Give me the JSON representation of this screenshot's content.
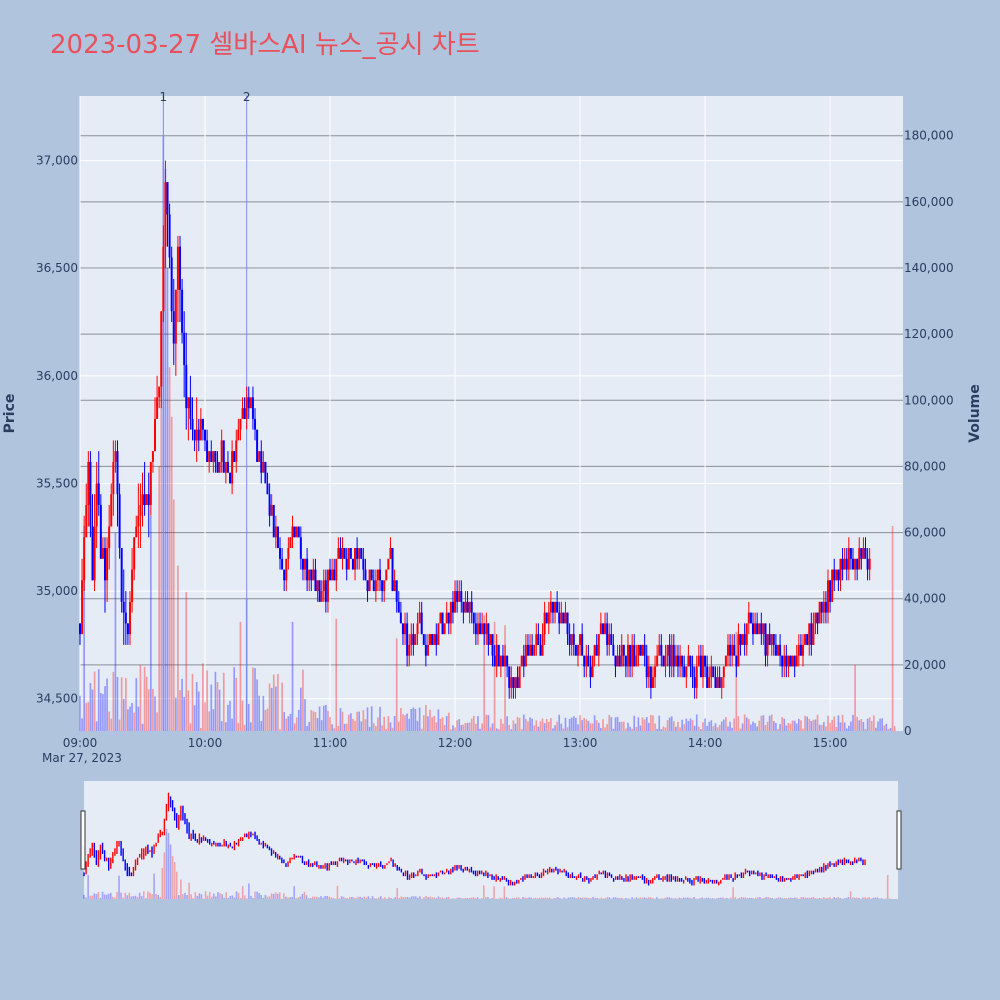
{
  "title": "2023-03-27 셀바스AI 뉴스_공시 차트",
  "colors": {
    "background": "#b0c4de",
    "plot_bg": "#e5ecf6",
    "up": "#ff0000",
    "down": "#0000ff",
    "title": "#e8505b"
  },
  "chart_data": {
    "type": "candlestick",
    "title": "2023-03-27 셀바스AI 뉴스_공시 차트",
    "ylabel": "Price",
    "y2label": "Volume",
    "date_label": "Mar 27, 2023",
    "ylim": [
      34350,
      37300
    ],
    "y2lim": [
      0,
      192000
    ],
    "x_range_minutes": [
      540,
      935
    ],
    "x_ticks": [
      "09:00",
      "10:00",
      "11:00",
      "12:00",
      "13:00",
      "14:00",
      "15:00"
    ],
    "y_ticks": [
      "34,500",
      "35,000",
      "35,500",
      "36,000",
      "36,500",
      "37,000"
    ],
    "y2_ticks": [
      "0",
      "20,000",
      "40,000",
      "60,000",
      "80,000",
      "100,000",
      "120,000",
      "140,000",
      "160,000",
      "180,000"
    ],
    "grid": true,
    "annotations": [
      {
        "label": "1",
        "time": "09:40"
      },
      {
        "label": "2",
        "time": "10:20"
      }
    ],
    "price_keypoints": [
      [
        "09:00",
        34850
      ],
      [
        "09:02",
        35250
      ],
      [
        "09:04",
        35600
      ],
      [
        "09:06",
        35100
      ],
      [
        "09:08",
        35500
      ],
      [
        "09:10",
        35200
      ],
      [
        "09:12",
        35050
      ],
      [
        "09:14",
        35300
      ],
      [
        "09:17",
        35650
      ],
      [
        "09:20",
        35000
      ],
      [
        "09:23",
        34800
      ],
      [
        "09:26",
        35250
      ],
      [
        "09:30",
        35350
      ],
      [
        "09:33",
        35450
      ],
      [
        "09:35",
        35650
      ],
      [
        "09:38",
        35950
      ],
      [
        "09:40",
        36600
      ],
      [
        "09:41",
        36900
      ],
      [
        "09:43",
        36500
      ],
      [
        "09:45",
        36150
      ],
      [
        "09:47",
        36600
      ],
      [
        "09:49",
        36200
      ],
      [
        "09:51",
        35850
      ],
      [
        "09:53",
        35800
      ],
      [
        "09:56",
        35750
      ],
      [
        "09:59",
        35800
      ],
      [
        "10:02",
        35600
      ],
      [
        "10:05",
        35550
      ],
      [
        "10:08",
        35650
      ],
      [
        "10:11",
        35550
      ],
      [
        "10:14",
        35600
      ],
      [
        "10:17",
        35800
      ],
      [
        "10:20",
        35900
      ],
      [
        "10:23",
        35800
      ],
      [
        "10:26",
        35600
      ],
      [
        "10:29",
        35500
      ],
      [
        "10:32",
        35300
      ],
      [
        "10:35",
        35200
      ],
      [
        "10:38",
        35100
      ],
      [
        "10:41",
        35200
      ],
      [
        "10:44",
        35250
      ],
      [
        "10:47",
        35150
      ],
      [
        "10:50",
        35100
      ],
      [
        "10:53",
        35000
      ],
      [
        "10:56",
        34950
      ],
      [
        "11:00",
        35050
      ],
      [
        "11:03",
        35150
      ],
      [
        "11:06",
        35200
      ],
      [
        "11:09",
        35150
      ],
      [
        "11:12",
        35200
      ],
      [
        "11:15",
        35200
      ],
      [
        "11:18",
        35050
      ],
      [
        "11:21",
        35100
      ],
      [
        "11:25",
        35050
      ],
      [
        "11:29",
        35100
      ],
      [
        "11:33",
        34900
      ],
      [
        "11:37",
        34750
      ],
      [
        "11:40",
        34800
      ],
      [
        "11:43",
        34850
      ],
      [
        "11:46",
        34750
      ],
      [
        "11:50",
        34800
      ],
      [
        "11:54",
        34850
      ],
      [
        "11:58",
        34900
      ],
      [
        "12:02",
        34950
      ],
      [
        "12:06",
        34900
      ],
      [
        "12:10",
        34850
      ],
      [
        "12:14",
        34800
      ],
      [
        "12:18",
        34700
      ],
      [
        "12:22",
        34650
      ],
      [
        "12:26",
        34550
      ],
      [
        "12:30",
        34600
      ],
      [
        "12:34",
        34700
      ],
      [
        "12:38",
        34750
      ],
      [
        "12:42",
        34800
      ],
      [
        "12:46",
        34950
      ],
      [
        "12:50",
        34900
      ],
      [
        "12:54",
        34800
      ],
      [
        "12:58",
        34750
      ],
      [
        "13:02",
        34700
      ],
      [
        "13:06",
        34700
      ],
      [
        "13:10",
        34800
      ],
      [
        "13:14",
        34750
      ],
      [
        "13:18",
        34700
      ],
      [
        "13:22",
        34750
      ],
      [
        "13:26",
        34650
      ],
      [
        "13:30",
        34700
      ],
      [
        "13:34",
        34600
      ],
      [
        "13:38",
        34650
      ],
      [
        "13:42",
        34700
      ],
      [
        "13:46",
        34650
      ],
      [
        "13:50",
        34650
      ],
      [
        "13:54",
        34600
      ],
      [
        "13:58",
        34650
      ],
      [
        "14:02",
        34600
      ],
      [
        "14:06",
        34550
      ],
      [
        "14:10",
        34650
      ],
      [
        "14:14",
        34700
      ],
      [
        "14:18",
        34750
      ],
      [
        "14:22",
        34850
      ],
      [
        "14:26",
        34800
      ],
      [
        "14:30",
        34750
      ],
      [
        "14:34",
        34700
      ],
      [
        "14:38",
        34650
      ],
      [
        "14:42",
        34650
      ],
      [
        "14:46",
        34700
      ],
      [
        "14:50",
        34800
      ],
      [
        "14:54",
        34850
      ],
      [
        "14:58",
        34950
      ],
      [
        "15:02",
        35050
      ],
      [
        "15:05",
        35150
      ],
      [
        "15:08",
        35200
      ],
      [
        "15:10",
        35150
      ],
      [
        "15:12",
        35100
      ],
      [
        "15:15",
        35150
      ],
      [
        "15:19",
        35100
      ]
    ],
    "volume_spikes": [
      [
        "09:40",
        180000
      ],
      [
        "09:41",
        170000
      ],
      [
        "09:42",
        140000
      ],
      [
        "09:39",
        120000
      ],
      [
        "09:43",
        110000
      ],
      [
        "09:44",
        95000
      ],
      [
        "09:38",
        80000
      ],
      [
        "09:45",
        70000
      ],
      [
        "09:02",
        62000
      ],
      [
        "09:17",
        60000
      ],
      [
        "09:34",
        65000
      ],
      [
        "09:47",
        50000
      ],
      [
        "09:51",
        42000
      ],
      [
        "10:20",
        40000
      ],
      [
        "10:17",
        33000
      ],
      [
        "10:42",
        33000
      ],
      [
        "11:03",
        34000
      ],
      [
        "11:32",
        28000
      ],
      [
        "12:14",
        35000
      ],
      [
        "12:19",
        33000
      ],
      [
        "12:24",
        32000
      ],
      [
        "14:15",
        30000
      ],
      [
        "15:12",
        20000
      ],
      [
        "15:30",
        62000
      ]
    ]
  }
}
